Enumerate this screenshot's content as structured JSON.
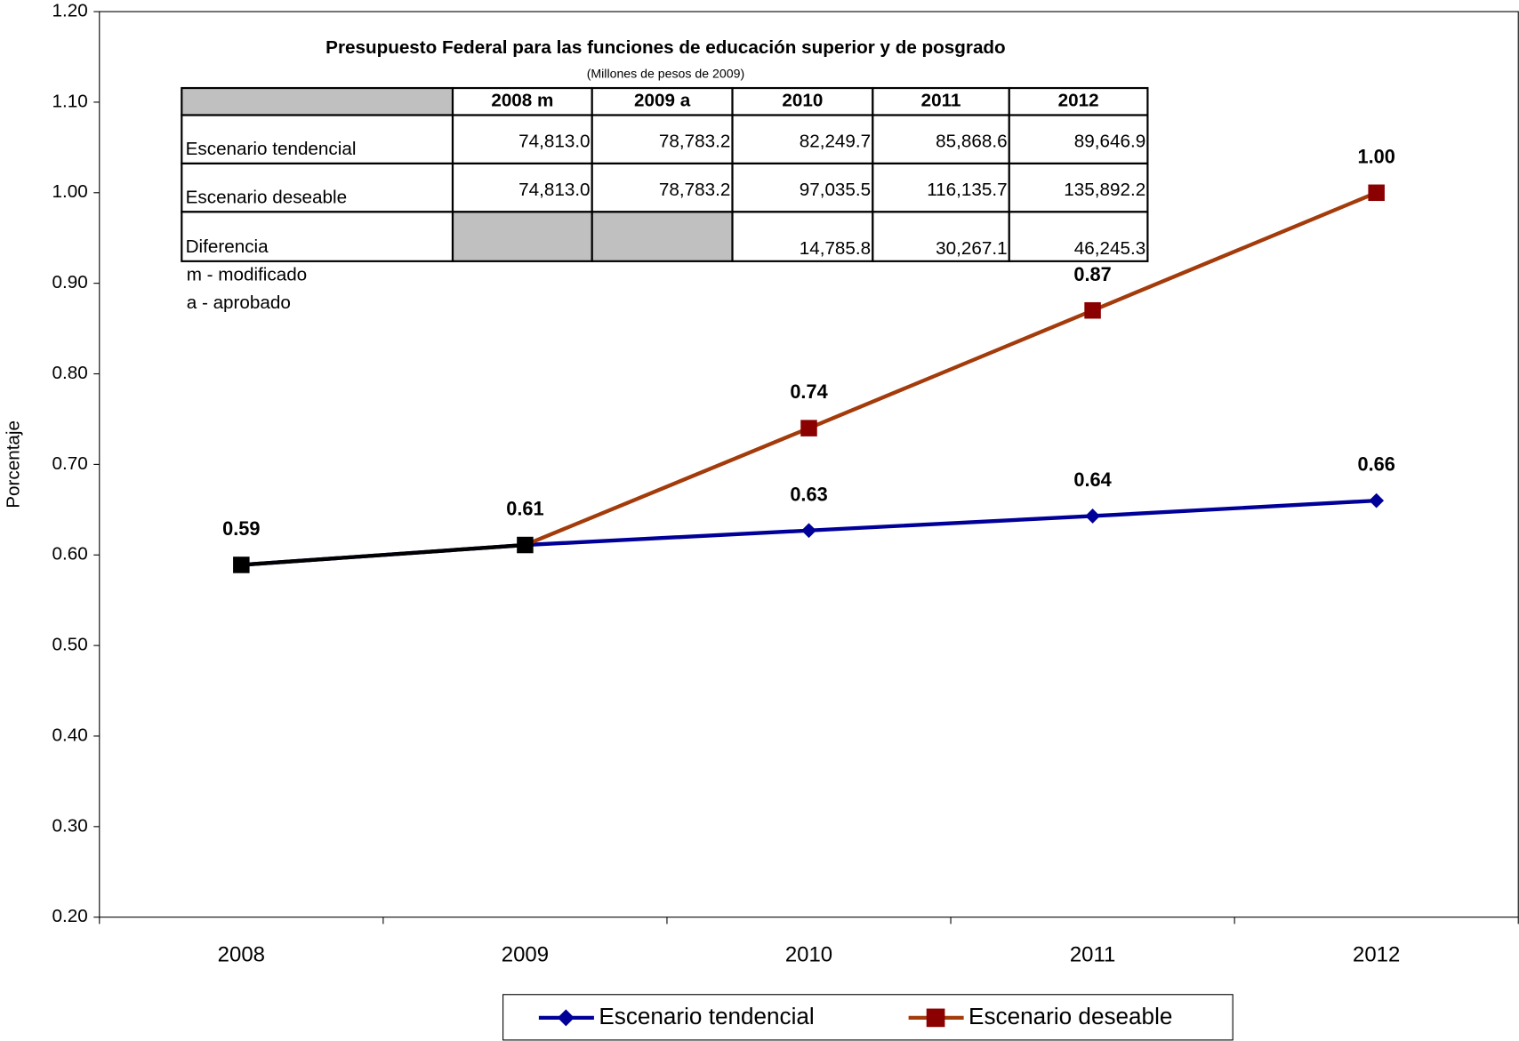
{
  "chart_data": {
    "type": "line",
    "y_label": "Porcentaje",
    "categories": [
      "2008",
      "2009",
      "2010",
      "2011",
      "2012"
    ],
    "ylim": [
      0.2,
      1.2
    ],
    "yticks": [
      {
        "value": 0.2,
        "label": "0.20"
      },
      {
        "value": 0.3,
        "label": "0.30"
      },
      {
        "value": 0.4,
        "label": "0.40"
      },
      {
        "value": 0.5,
        "label": "0.50"
      },
      {
        "value": 0.6,
        "label": "0.60"
      },
      {
        "value": 0.7,
        "label": "0.70"
      },
      {
        "value": 0.8,
        "label": "0.80"
      },
      {
        "value": 0.9,
        "label": "0.90"
      },
      {
        "value": 1.0,
        "label": "1.00"
      },
      {
        "value": 1.1,
        "label": "1.10"
      },
      {
        "value": 1.2,
        "label": "1.20"
      }
    ],
    "grid": false,
    "legend": "bottom",
    "series": [
      {
        "name": "Escenario tendencial",
        "color": "#000099",
        "marker": "diamond",
        "values": [
          0.589,
          0.611,
          0.627,
          0.643,
          0.66
        ],
        "value_labels": [
          "0.59",
          "0.61",
          "0.63",
          "0.64",
          "0.66"
        ]
      },
      {
        "name": "Escenario deseable",
        "color": "#a33b0b",
        "marker": "square",
        "marker_color": "#8b0000",
        "values": [
          0.589,
          0.611,
          0.74,
          0.87,
          1.0
        ],
        "value_labels": [
          null,
          null,
          "0.74",
          "0.87",
          "1.00"
        ],
        "segment_colors": [
          "#000000",
          "#a33b0b",
          "#a33b0b",
          "#a33b0b"
        ],
        "point_colors": [
          "#000000",
          "#000000",
          "#8b0000",
          "#8b0000",
          "#8b0000"
        ]
      }
    ]
  },
  "table": {
    "title": "Presupuesto Federal para las funciones de educación superior y de posgrado",
    "subtitle": "(Millones de pesos de 2009)",
    "header": [
      "2008 m",
      "2009 a",
      "2010",
      "2011",
      "2012"
    ],
    "rows": [
      {
        "label": "Escenario tendencial",
        "cells": [
          "74,813.0",
          "78,783.2",
          "82,249.7",
          "85,868.6",
          "89,646.9"
        ]
      },
      {
        "label": "Escenario deseable",
        "cells": [
          "74,813.0",
          "78,783.2",
          "97,035.5",
          "116,135.7",
          "135,892.2"
        ]
      },
      {
        "label": "Diferencia",
        "cells": [
          null,
          null,
          "14,785.8",
          "30,267.1",
          "46,245.3"
        ]
      }
    ],
    "notes": [
      "m - modificado",
      "a - aprobado"
    ]
  }
}
